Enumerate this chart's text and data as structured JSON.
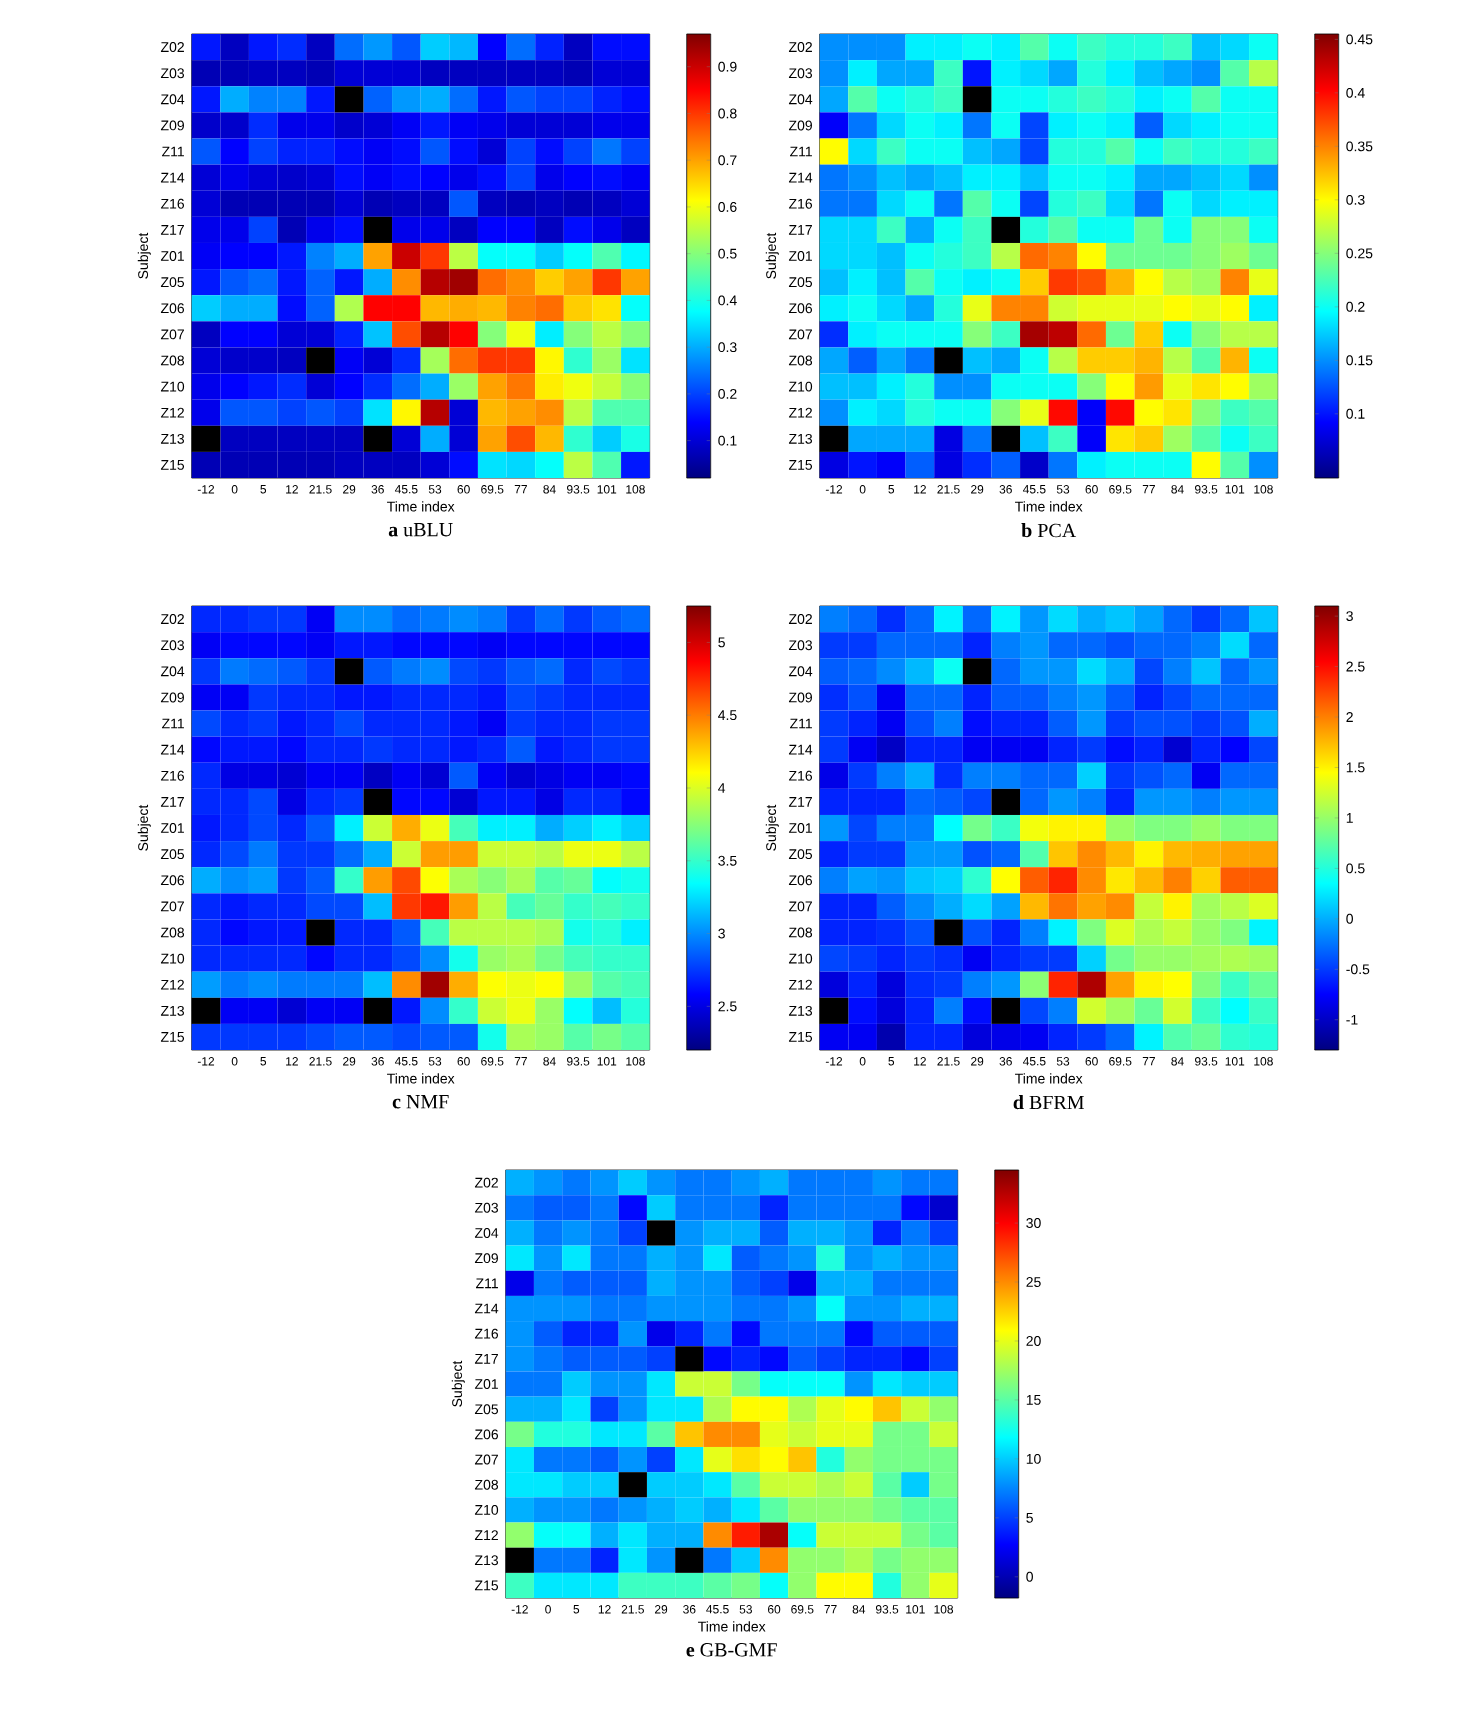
{
  "chart_data": [
    {
      "type": "heatmap",
      "title": "**a** uBLU",
      "xlabel": "Time index",
      "ylabel": "Subject",
      "categories": [
        "-12",
        "0",
        "5",
        "12",
        "21.5",
        "29",
        "36",
        "45.5",
        "53",
        "60",
        "69.5",
        "77",
        "84",
        "93.5",
        "101",
        "108"
      ],
      "y_categories": [
        "Z02",
        "Z03",
        "Z04",
        "Z09",
        "Z11",
        "Z14",
        "Z16",
        "Z17",
        "Z01",
        "Z05",
        "Z06",
        "Z07",
        "Z08",
        "Z10",
        "Z12",
        "Z13",
        "Z15"
      ],
      "cells": [
        [
          0.16,
          0.08,
          0.16,
          0.18,
          0.08,
          0.24,
          0.28,
          0.22,
          0.33,
          0.31,
          0.14,
          0.24,
          0.17,
          0.08,
          0.15,
          0.15
        ],
        [
          0.07,
          0.07,
          0.08,
          0.08,
          0.07,
          0.1,
          0.1,
          0.1,
          0.08,
          0.08,
          0.08,
          0.08,
          0.08,
          0.07,
          0.1,
          0.1
        ],
        [
          0.16,
          0.3,
          0.26,
          0.26,
          0.16,
          null,
          0.23,
          0.28,
          0.3,
          0.24,
          0.16,
          0.22,
          0.2,
          0.2,
          0.17,
          0.15
        ],
        [
          0.09,
          0.09,
          0.18,
          0.12,
          0.12,
          0.09,
          0.1,
          0.13,
          0.16,
          0.13,
          0.12,
          0.1,
          0.1,
          0.1,
          0.12,
          0.12
        ],
        [
          0.22,
          0.14,
          0.2,
          0.17,
          0.17,
          0.15,
          0.13,
          0.15,
          0.22,
          0.15,
          0.1,
          0.2,
          0.15,
          0.2,
          0.25,
          0.2
        ],
        [
          0.1,
          0.12,
          0.1,
          0.09,
          0.1,
          0.15,
          0.13,
          0.15,
          0.14,
          0.12,
          0.15,
          0.2,
          0.12,
          0.14,
          0.15,
          0.13
        ],
        [
          0.1,
          0.07,
          0.07,
          0.07,
          0.07,
          0.1,
          0.07,
          0.08,
          0.08,
          0.22,
          0.08,
          0.07,
          0.08,
          0.07,
          0.08,
          0.1
        ],
        [
          0.12,
          0.12,
          0.2,
          0.07,
          0.12,
          0.15,
          null,
          0.12,
          0.12,
          0.08,
          0.14,
          0.14,
          0.08,
          0.15,
          0.12,
          0.08
        ],
        [
          0.13,
          0.14,
          0.14,
          0.16,
          0.26,
          0.3,
          0.7,
          0.9,
          0.8,
          0.55,
          0.38,
          0.38,
          0.33,
          0.38,
          0.45,
          0.37
        ],
        [
          0.16,
          0.22,
          0.24,
          0.16,
          0.23,
          0.16,
          0.3,
          0.72,
          0.92,
          0.94,
          0.75,
          0.72,
          0.66,
          0.7,
          0.8,
          0.7
        ],
        [
          0.33,
          0.3,
          0.3,
          0.15,
          0.23,
          0.54,
          0.85,
          0.85,
          0.68,
          0.69,
          0.68,
          0.73,
          0.75,
          0.66,
          0.64,
          0.38
        ],
        [
          0.08,
          0.14,
          0.14,
          0.1,
          0.1,
          0.17,
          0.32,
          0.78,
          0.92,
          0.85,
          0.5,
          0.6,
          0.36,
          0.5,
          0.55,
          0.5
        ],
        [
          0.1,
          0.09,
          0.09,
          0.08,
          null,
          0.13,
          0.1,
          0.18,
          0.53,
          0.75,
          0.8,
          0.8,
          0.62,
          0.42,
          0.52,
          0.35
        ],
        [
          0.12,
          0.14,
          0.16,
          0.18,
          0.1,
          0.14,
          0.18,
          0.24,
          0.3,
          0.52,
          0.7,
          0.74,
          0.63,
          0.6,
          0.56,
          0.5
        ],
        [
          0.12,
          0.22,
          0.22,
          0.2,
          0.22,
          0.2,
          0.35,
          0.62,
          0.92,
          0.1,
          0.68,
          0.7,
          0.72,
          0.55,
          0.45,
          0.45
        ],
        [
          null,
          0.08,
          0.08,
          0.08,
          0.08,
          0.08,
          null,
          0.1,
          0.3,
          0.1,
          0.7,
          0.78,
          0.68,
          0.42,
          0.33,
          0.4
        ],
        [
          0.07,
          0.07,
          0.07,
          0.07,
          0.07,
          0.08,
          0.08,
          0.08,
          0.1,
          0.15,
          0.35,
          0.34,
          0.38,
          0.55,
          0.45,
          0.16
        ]
      ],
      "clim": [
        0.02,
        0.97
      ],
      "cticks": [
        0.1,
        0.2,
        0.3,
        0.4,
        0.5,
        0.6,
        0.7,
        0.8,
        0.9
      ]
    },
    {
      "type": "heatmap",
      "title": "**b** PCA",
      "xlabel": "Time index",
      "ylabel": "Subject",
      "categories": [
        "-12",
        "0",
        "5",
        "12",
        "21.5",
        "29",
        "36",
        "45.5",
        "53",
        "60",
        "69.5",
        "77",
        "84",
        "93.5",
        "101",
        "108"
      ],
      "y_categories": [
        "Z02",
        "Z03",
        "Z04",
        "Z09",
        "Z11",
        "Z14",
        "Z16",
        "Z17",
        "Z01",
        "Z05",
        "Z06",
        "Z07",
        "Z08",
        "Z10",
        "Z12",
        "Z13",
        "Z15"
      ],
      "cells": [
        [
          0.15,
          0.15,
          0.15,
          0.19,
          0.19,
          0.2,
          0.19,
          0.23,
          0.2,
          0.22,
          0.21,
          0.21,
          0.22,
          0.17,
          0.18,
          0.2
        ],
        [
          0.15,
          0.19,
          0.16,
          0.16,
          0.22,
          0.1,
          0.19,
          0.18,
          0.16,
          0.21,
          0.19,
          0.17,
          0.16,
          0.15,
          0.23,
          0.27
        ],
        [
          0.16,
          0.23,
          0.2,
          0.21,
          0.22,
          null,
          0.2,
          0.2,
          0.21,
          0.22,
          0.21,
          0.19,
          0.2,
          0.23,
          0.2,
          0.2
        ],
        [
          0.09,
          0.14,
          0.18,
          0.2,
          0.19,
          0.14,
          0.2,
          0.12,
          0.19,
          0.2,
          0.19,
          0.13,
          0.18,
          0.19,
          0.2,
          0.2
        ],
        [
          0.3,
          0.18,
          0.22,
          0.2,
          0.2,
          0.17,
          0.16,
          0.12,
          0.21,
          0.21,
          0.23,
          0.2,
          0.22,
          0.21,
          0.21,
          0.22
        ],
        [
          0.14,
          0.15,
          0.17,
          0.16,
          0.17,
          0.19,
          0.19,
          0.17,
          0.2,
          0.2,
          0.19,
          0.16,
          0.16,
          0.17,
          0.18,
          0.15
        ],
        [
          0.14,
          0.14,
          0.18,
          0.2,
          0.14,
          0.23,
          0.2,
          0.12,
          0.21,
          0.22,
          0.18,
          0.14,
          0.2,
          0.18,
          0.19,
          0.19
        ],
        [
          0.18,
          0.18,
          0.22,
          0.16,
          0.2,
          0.22,
          null,
          0.21,
          0.23,
          0.2,
          0.2,
          0.24,
          0.2,
          0.25,
          0.25,
          0.2
        ],
        [
          0.18,
          0.18,
          0.17,
          0.2,
          0.21,
          0.22,
          0.27,
          0.36,
          0.35,
          0.3,
          0.24,
          0.24,
          0.24,
          0.25,
          0.26,
          0.24
        ],
        [
          0.17,
          0.19,
          0.17,
          0.23,
          0.2,
          0.19,
          0.2,
          0.32,
          0.38,
          0.37,
          0.33,
          0.3,
          0.27,
          0.26,
          0.35,
          0.29
        ],
        [
          0.19,
          0.2,
          0.18,
          0.16,
          0.21,
          0.29,
          0.35,
          0.35,
          0.28,
          0.29,
          0.29,
          0.29,
          0.3,
          0.29,
          0.3,
          0.19
        ],
        [
          0.11,
          0.19,
          0.2,
          0.2,
          0.2,
          0.25,
          0.22,
          0.44,
          0.43,
          0.36,
          0.24,
          0.32,
          0.2,
          0.25,
          0.27,
          0.27
        ],
        [
          0.16,
          0.13,
          0.16,
          0.14,
          null,
          0.17,
          0.16,
          0.2,
          0.27,
          0.32,
          0.32,
          0.33,
          0.27,
          0.23,
          0.33,
          0.2
        ],
        [
          0.17,
          0.17,
          0.19,
          0.21,
          0.15,
          0.15,
          0.2,
          0.2,
          0.2,
          0.25,
          0.3,
          0.34,
          0.29,
          0.31,
          0.3,
          0.26
        ],
        [
          0.15,
          0.19,
          0.18,
          0.21,
          0.2,
          0.2,
          0.25,
          0.29,
          0.4,
          0.09,
          0.4,
          0.3,
          0.31,
          0.25,
          0.22,
          0.23
        ],
        [
          null,
          0.16,
          0.16,
          0.16,
          0.08,
          0.14,
          null,
          0.17,
          0.22,
          0.09,
          0.31,
          0.32,
          0.26,
          0.23,
          0.2,
          0.22
        ],
        [
          0.08,
          0.1,
          0.09,
          0.13,
          0.08,
          0.11,
          0.13,
          0.07,
          0.14,
          0.19,
          0.2,
          0.2,
          0.2,
          0.3,
          0.23,
          0.15
        ]
      ],
      "clim": [
        0.04,
        0.455
      ],
      "cticks": [
        0.1,
        0.15,
        0.2,
        0.25,
        0.3,
        0.35,
        0.4,
        0.45
      ]
    },
    {
      "type": "heatmap",
      "title": "**c** NMF",
      "xlabel": "Time index",
      "ylabel": "Subject",
      "categories": [
        "-12",
        "0",
        "5",
        "12",
        "21.5",
        "29",
        "36",
        "45.5",
        "53",
        "60",
        "69.5",
        "77",
        "84",
        "93.5",
        "101",
        "108"
      ],
      "y_categories": [
        "Z02",
        "Z03",
        "Z04",
        "Z09",
        "Z11",
        "Z14",
        "Z16",
        "Z17",
        "Z01",
        "Z05",
        "Z06",
        "Z07",
        "Z08",
        "Z10",
        "Z12",
        "Z13",
        "Z15"
      ],
      "cells": [
        [
          2.7,
          2.7,
          2.75,
          2.75,
          2.55,
          3.0,
          3.0,
          2.9,
          2.95,
          3.0,
          2.95,
          2.75,
          2.9,
          2.75,
          2.85,
          2.9
        ],
        [
          2.55,
          2.6,
          2.6,
          2.6,
          2.55,
          2.65,
          2.65,
          2.6,
          2.6,
          2.6,
          2.55,
          2.6,
          2.6,
          2.6,
          2.6,
          2.6
        ],
        [
          2.75,
          2.95,
          2.9,
          2.85,
          2.75,
          null,
          2.85,
          2.95,
          3.0,
          2.8,
          2.75,
          2.85,
          2.9,
          2.7,
          2.8,
          2.75
        ],
        [
          2.55,
          2.55,
          2.75,
          2.7,
          2.7,
          2.65,
          2.65,
          2.7,
          2.7,
          2.7,
          2.65,
          2.8,
          2.75,
          2.7,
          2.7,
          2.7
        ],
        [
          2.8,
          2.7,
          2.75,
          2.65,
          2.7,
          2.8,
          2.7,
          2.7,
          2.7,
          2.65,
          2.55,
          2.75,
          2.7,
          2.7,
          2.75,
          2.75
        ],
        [
          2.6,
          2.65,
          2.65,
          2.6,
          2.7,
          2.7,
          2.75,
          2.7,
          2.7,
          2.65,
          2.7,
          2.85,
          2.65,
          2.7,
          2.75,
          2.75
        ],
        [
          2.7,
          2.5,
          2.5,
          2.45,
          2.55,
          2.55,
          2.4,
          2.55,
          2.45,
          2.85,
          2.55,
          2.45,
          2.5,
          2.55,
          2.55,
          2.6
        ],
        [
          2.7,
          2.7,
          2.8,
          2.5,
          2.7,
          2.75,
          null,
          2.6,
          2.6,
          2.45,
          2.65,
          2.65,
          2.5,
          2.7,
          2.7,
          2.6
        ],
        [
          2.65,
          2.7,
          2.8,
          2.7,
          2.85,
          3.3,
          3.95,
          4.35,
          4.05,
          3.55,
          3.3,
          3.3,
          3.1,
          3.2,
          3.3,
          3.2
        ],
        [
          2.7,
          2.8,
          2.95,
          2.75,
          2.75,
          2.9,
          3.1,
          3.95,
          4.4,
          4.4,
          3.95,
          3.95,
          3.9,
          4.05,
          4.05,
          3.9
        ],
        [
          3.1,
          3.0,
          3.05,
          2.75,
          2.85,
          3.5,
          4.4,
          4.65,
          4.1,
          3.85,
          3.75,
          3.85,
          3.6,
          3.65,
          3.35,
          3.4
        ],
        [
          2.7,
          2.65,
          2.7,
          2.7,
          2.8,
          2.8,
          3.15,
          4.7,
          4.8,
          4.4,
          3.9,
          3.55,
          3.65,
          3.5,
          3.55,
          3.5
        ],
        [
          2.7,
          2.6,
          2.65,
          2.65,
          null,
          2.7,
          2.7,
          2.85,
          3.55,
          3.9,
          3.9,
          3.9,
          3.85,
          3.4,
          3.45,
          3.3
        ],
        [
          2.7,
          2.7,
          2.7,
          2.7,
          2.6,
          2.7,
          2.7,
          2.8,
          3.0,
          3.4,
          3.8,
          3.85,
          3.7,
          3.55,
          3.5,
          3.5
        ],
        [
          3.05,
          2.95,
          3.0,
          2.95,
          2.95,
          2.95,
          3.15,
          4.45,
          5.15,
          4.35,
          4.1,
          4.05,
          4.1,
          3.8,
          3.6,
          3.55
        ],
        [
          null,
          2.55,
          2.55,
          2.45,
          2.55,
          2.55,
          null,
          2.65,
          3.0,
          3.5,
          3.95,
          4.05,
          3.8,
          3.35,
          3.15,
          3.45
        ],
        [
          2.75,
          2.75,
          2.75,
          2.75,
          2.8,
          2.85,
          2.85,
          2.8,
          2.85,
          2.85,
          3.4,
          3.85,
          3.8,
          3.6,
          3.7,
          3.6
        ]
      ],
      "clim": [
        2.2,
        5.25
      ],
      "cticks": [
        2.5,
        3,
        3.5,
        4,
        4.5,
        5
      ]
    },
    {
      "type": "heatmap",
      "title": "**d** BFRM",
      "xlabel": "Time index",
      "ylabel": "Subject",
      "categories": [
        "-12",
        "0",
        "5",
        "12",
        "21.5",
        "29",
        "36",
        "45.5",
        "53",
        "60",
        "69.5",
        "77",
        "84",
        "93.5",
        "101",
        "108"
      ],
      "y_categories": [
        "Z02",
        "Z03",
        "Z04",
        "Z09",
        "Z11",
        "Z14",
        "Z16",
        "Z17",
        "Z01",
        "Z05",
        "Z06",
        "Z07",
        "Z08",
        "Z10",
        "Z12",
        "Z13",
        "Z15"
      ],
      "cells": [
        [
          -0.2,
          -0.3,
          -0.55,
          -0.3,
          0.3,
          -0.3,
          0.3,
          -0.1,
          0.2,
          0.0,
          0.1,
          -0.05,
          -0.3,
          -0.5,
          -0.3,
          0.1
        ],
        [
          -0.5,
          -0.5,
          -0.3,
          -0.3,
          -0.3,
          -0.6,
          -0.2,
          -0.1,
          -0.3,
          -0.3,
          -0.4,
          -0.3,
          -0.3,
          -0.2,
          0.2,
          -0.3
        ],
        [
          -0.35,
          -0.3,
          -0.15,
          0.05,
          0.4,
          null,
          -0.3,
          -0.1,
          -0.1,
          0.2,
          0.0,
          -0.45,
          -0.2,
          0.1,
          -0.3,
          -0.1
        ],
        [
          -0.55,
          -0.4,
          -0.8,
          -0.3,
          -0.3,
          -0.6,
          -0.35,
          -0.35,
          -0.2,
          -0.1,
          -0.35,
          -0.6,
          -0.45,
          -0.3,
          -0.3,
          -0.3
        ],
        [
          -0.5,
          -0.6,
          -0.8,
          -0.4,
          -0.2,
          -0.7,
          -0.6,
          -0.6,
          -0.35,
          -0.1,
          -0.5,
          -0.4,
          -0.4,
          -0.5,
          -0.4,
          0.0
        ],
        [
          -0.5,
          -0.8,
          -1.0,
          -0.6,
          -0.6,
          -0.8,
          -0.8,
          -0.8,
          -0.6,
          -0.5,
          -0.7,
          -0.6,
          -0.95,
          -0.6,
          -0.75,
          -0.45
        ],
        [
          -0.85,
          -0.5,
          -0.2,
          0.0,
          -0.55,
          -0.2,
          -0.2,
          -0.3,
          -0.3,
          0.15,
          -0.5,
          -0.4,
          -0.3,
          -0.8,
          -0.3,
          -0.3
        ],
        [
          -0.6,
          -0.6,
          -0.6,
          -0.3,
          -0.35,
          -0.45,
          null,
          -0.3,
          -0.1,
          -0.2,
          -0.6,
          -0.1,
          -0.1,
          -0.2,
          -0.1,
          -0.1
        ],
        [
          -0.1,
          -0.45,
          -0.2,
          -0.2,
          0.35,
          0.85,
          0.6,
          1.4,
          1.5,
          1.5,
          1.0,
          0.9,
          0.9,
          1.0,
          0.9,
          0.9
        ],
        [
          -0.6,
          -0.5,
          -0.5,
          -0.1,
          -0.1,
          -0.4,
          -0.3,
          0.7,
          1.7,
          1.95,
          1.75,
          1.5,
          1.75,
          1.8,
          1.85,
          1.85
        ],
        [
          -0.2,
          -0.05,
          -0.1,
          0.1,
          0.15,
          0.55,
          1.45,
          2.15,
          2.4,
          1.95,
          1.55,
          1.75,
          2.0,
          1.65,
          2.15,
          2.15
        ],
        [
          -0.6,
          -0.6,
          -0.35,
          -0.15,
          0.0,
          0.2,
          -0.05,
          1.75,
          2.05,
          1.85,
          1.95,
          1.2,
          1.5,
          1.05,
          1.15,
          1.3
        ],
        [
          -0.6,
          -0.6,
          -0.55,
          -0.4,
          null,
          -0.4,
          -0.6,
          -0.2,
          0.3,
          0.9,
          1.3,
          1.1,
          1.2,
          1.0,
          0.9,
          0.3
        ],
        [
          -0.45,
          -0.5,
          -0.6,
          -0.5,
          -0.55,
          -0.8,
          -0.6,
          -0.5,
          -0.5,
          0.15,
          0.85,
          1.0,
          1.0,
          1.05,
          1.1,
          1.05
        ],
        [
          -0.9,
          -0.6,
          -0.9,
          -0.55,
          -0.5,
          -0.2,
          -0.1,
          0.95,
          2.4,
          2.9,
          1.85,
          1.5,
          1.45,
          0.9,
          0.6,
          0.8
        ],
        [
          null,
          -0.7,
          -0.9,
          -0.6,
          -0.2,
          -0.7,
          null,
          -0.45,
          -0.2,
          1.25,
          1.05,
          0.8,
          1.25,
          0.6,
          0.35,
          0.6
        ],
        [
          -0.8,
          -0.8,
          -1.1,
          -0.6,
          -0.6,
          -0.9,
          -0.85,
          -0.8,
          -0.6,
          -0.5,
          -0.3,
          0.3,
          0.7,
          0.8,
          0.55,
          0.5
        ]
      ],
      "clim": [
        -1.3,
        3.1
      ],
      "cticks": [
        -1,
        -0.5,
        0,
        0.5,
        1,
        1.5,
        2,
        2.5,
        3
      ]
    },
    {
      "type": "heatmap",
      "title": "**e** GB-GMF",
      "xlabel": "Time index",
      "ylabel": "Subject",
      "categories": [
        "-12",
        "0",
        "5",
        "12",
        "21.5",
        "29",
        "36",
        "45.5",
        "53",
        "60",
        "69.5",
        "77",
        "84",
        "93.5",
        "101",
        "108"
      ],
      "y_categories": [
        "Z02",
        "Z03",
        "Z04",
        "Z09",
        "Z11",
        "Z14",
        "Z16",
        "Z17",
        "Z01",
        "Z05",
        "Z06",
        "Z07",
        "Z08",
        "Z10",
        "Z12",
        "Z13",
        "Z15"
      ],
      "cells": [
        [
          9,
          8,
          7,
          8,
          10,
          8,
          7,
          7,
          8,
          9,
          7,
          7,
          7,
          8,
          7,
          7
        ],
        [
          7,
          6,
          6,
          7,
          3,
          10,
          7,
          7,
          7,
          4,
          7,
          7,
          7,
          7,
          3,
          1
        ],
        [
          9,
          7,
          8,
          7,
          5,
          null,
          8,
          9,
          9,
          6,
          9,
          9,
          8,
          4,
          7,
          5
        ],
        [
          11,
          8,
          11,
          7,
          7,
          9,
          8,
          11,
          6,
          7,
          8,
          13,
          8,
          9,
          8,
          8
        ],
        [
          2,
          7,
          6,
          6,
          6,
          9,
          8,
          8,
          6,
          5,
          2,
          9,
          9,
          7,
          7,
          7
        ],
        [
          8,
          8,
          8,
          7,
          7,
          8,
          8,
          8,
          7,
          7,
          8,
          12,
          8,
          8,
          9,
          9
        ],
        [
          8,
          6,
          4,
          4,
          8,
          2,
          4,
          7,
          3,
          7,
          7,
          7,
          3,
          6,
          6,
          6
        ],
        [
          8,
          7,
          6,
          6,
          6,
          5,
          null,
          3,
          4,
          3,
          6,
          5,
          4,
          4,
          3,
          5
        ],
        [
          7,
          7,
          10,
          8,
          8,
          11,
          19,
          19,
          16,
          12,
          12,
          12,
          8,
          11,
          10,
          10
        ],
        [
          9,
          9,
          11,
          5,
          8,
          11,
          11,
          18,
          21,
          21,
          18,
          20,
          21,
          23,
          19,
          17
        ],
        [
          16,
          13,
          13,
          11,
          11,
          15,
          23,
          25,
          25,
          20,
          19,
          20,
          20,
          16,
          16,
          19
        ],
        [
          11,
          7,
          7,
          6,
          8,
          5,
          11,
          20,
          22,
          21,
          23,
          13,
          17,
          16,
          16,
          16
        ],
        [
          11,
          11,
          10,
          10,
          null,
          10,
          10,
          11,
          15,
          19,
          19,
          18,
          19,
          15,
          10,
          16
        ],
        [
          9,
          8,
          8,
          7,
          8,
          9,
          10,
          9,
          11,
          15,
          17,
          17,
          17,
          16,
          15,
          15
        ],
        [
          17,
          12,
          12,
          9,
          11,
          9,
          9,
          25,
          29,
          33,
          12,
          19,
          19,
          19,
          16,
          15
        ],
        [
          null,
          7,
          7,
          4,
          11,
          8,
          null,
          7,
          10,
          25,
          17,
          17,
          18,
          16,
          17,
          17
        ],
        [
          14,
          11,
          11,
          11,
          14,
          14,
          14,
          15,
          16,
          12,
          17,
          21,
          21,
          13,
          17,
          20
        ]
      ],
      "clim": [
        -1.8,
        34.5
      ],
      "cticks": [
        0,
        5,
        10,
        15,
        20,
        25,
        30
      ]
    }
  ]
}
